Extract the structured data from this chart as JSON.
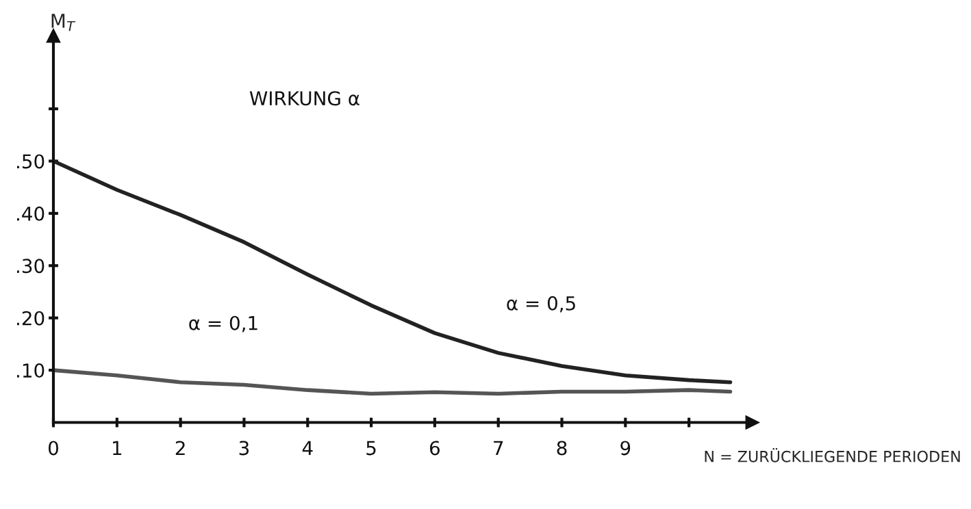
{
  "chart_data": {
    "type": "line",
    "title": "WIRKUNG α",
    "xlabel": "N = ZURÜCKLIEGENDE PERIODEN",
    "ylabel": "M$_{T}$",
    "x": [
      0,
      1,
      2,
      3,
      4,
      5,
      6,
      7,
      8,
      9,
      10,
      10.65
    ],
    "series": [
      {
        "name": "α = 0,5",
        "color": "#222222",
        "values": [
          0.5,
          0.445,
          0.397,
          0.345,
          0.283,
          0.224,
          0.171,
          0.133,
          0.108,
          0.09,
          0.081,
          0.077
        ]
      },
      {
        "name": "α = 0,1",
        "color": "#555555",
        "values": [
          0.1,
          0.09,
          0.077,
          0.072,
          0.062,
          0.055,
          0.058,
          0.055,
          0.059,
          0.059,
          0.062,
          0.059
        ]
      }
    ],
    "xlim": [
      0,
      11
    ],
    "ylim": [
      0,
      0.74
    ],
    "xticks": [
      0,
      1,
      2,
      3,
      4,
      5,
      6,
      7,
      8,
      9,
      {
        "value": 10,
        "label": null
      }
    ],
    "yticks": [
      {
        "value": 0.1,
        "label": ".10"
      },
      {
        "value": 0.2,
        "label": ".20"
      },
      {
        "value": 0.3,
        "label": ".30"
      },
      {
        "value": 0.4,
        "label": ".40"
      },
      {
        "value": 0.5,
        "label": ".50"
      },
      {
        "value": 0.6,
        "label": null
      }
    ],
    "grid": false,
    "legend": false,
    "marker": "none",
    "line_style": "solid"
  }
}
